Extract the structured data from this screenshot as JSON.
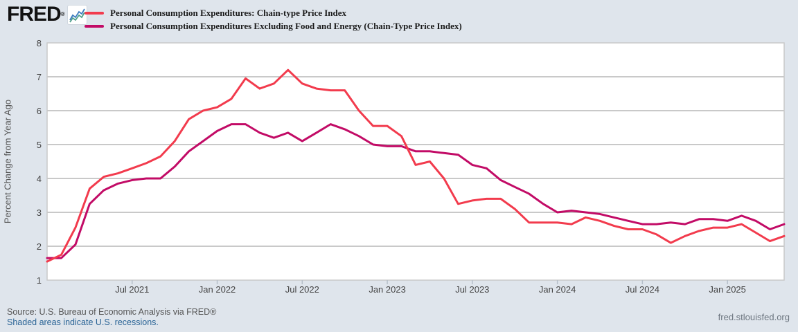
{
  "header": {
    "logo_text": "FRED",
    "logo_registered": "®",
    "logo_icon": "sparkline-chart-icon",
    "legend": [
      {
        "label": "Personal Consumption Expenditures: Chain-type Price Index",
        "color": "#f23b4d"
      },
      {
        "label": "Personal Consumption Expenditures Excluding Food and Energy (Chain-Type Price Index)",
        "color": "#c20b66"
      }
    ]
  },
  "footer": {
    "source": "Source: U.S. Bureau of Economic Analysis via FRED®",
    "recession_note": "Shaded areas indicate U.S. recessions.",
    "site": "fred.stlouisfed.org"
  },
  "chart_data": {
    "type": "line",
    "title": "",
    "xlabel": "",
    "ylabel": "Percent Change from Year Ago",
    "ylim": [
      1,
      8
    ],
    "yticks": [
      1,
      2,
      3,
      4,
      5,
      6,
      7,
      8
    ],
    "grid": true,
    "legend_position": "top-left-outside",
    "plot_bg": "#ffffff",
    "page_bg": "#dfe5ec",
    "grid_color": "#c9c9c9",
    "x": [
      "2021-01",
      "2021-02",
      "2021-03",
      "2021-04",
      "2021-05",
      "2021-06",
      "2021-07",
      "2021-08",
      "2021-09",
      "2021-10",
      "2021-11",
      "2021-12",
      "2022-01",
      "2022-02",
      "2022-03",
      "2022-04",
      "2022-05",
      "2022-06",
      "2022-07",
      "2022-08",
      "2022-09",
      "2022-10",
      "2022-11",
      "2022-12",
      "2023-01",
      "2023-02",
      "2023-03",
      "2023-04",
      "2023-05",
      "2023-06",
      "2023-07",
      "2023-08",
      "2023-09",
      "2023-10",
      "2023-11",
      "2023-12",
      "2024-01",
      "2024-02",
      "2024-03",
      "2024-04",
      "2024-05",
      "2024-06",
      "2024-07",
      "2024-08",
      "2024-09",
      "2024-10",
      "2024-11",
      "2024-12",
      "2025-01",
      "2025-02",
      "2025-03",
      "2025-04",
      "2025-05"
    ],
    "xticks": [
      {
        "label": "Jul 2021",
        "month": "2021-07"
      },
      {
        "label": "Jan 2022",
        "month": "2022-01"
      },
      {
        "label": "Jul 2022",
        "month": "2022-07"
      },
      {
        "label": "Jan 2023",
        "month": "2023-01"
      },
      {
        "label": "Jul 2023",
        "month": "2023-07"
      },
      {
        "label": "Jan 2024",
        "month": "2024-01"
      },
      {
        "label": "Jul 2024",
        "month": "2024-07"
      },
      {
        "label": "Jan 2025",
        "month": "2025-01"
      }
    ],
    "series": [
      {
        "name": "Personal Consumption Expenditures: Chain-type Price Index",
        "color": "#f23b4d",
        "values": [
          1.55,
          1.75,
          2.55,
          3.7,
          4.05,
          4.15,
          4.3,
          4.45,
          4.65,
          5.1,
          5.75,
          6.0,
          6.1,
          6.35,
          6.95,
          6.65,
          6.8,
          7.2,
          6.8,
          6.65,
          6.6,
          6.6,
          6.0,
          5.55,
          5.55,
          5.25,
          4.4,
          4.5,
          4.0,
          3.25,
          3.35,
          3.4,
          3.4,
          3.1,
          2.7,
          2.7,
          2.7,
          2.65,
          2.85,
          2.75,
          2.6,
          2.5,
          2.5,
          2.35,
          2.1,
          2.3,
          2.45,
          2.55,
          2.55,
          2.65,
          2.4,
          2.15,
          2.3
        ]
      },
      {
        "name": "Personal Consumption Expenditures Excluding Food and Energy (Chain-Type Price Index)",
        "color": "#c20b66",
        "values": [
          1.65,
          1.65,
          2.05,
          3.25,
          3.65,
          3.85,
          3.95,
          4.0,
          4.0,
          4.35,
          4.8,
          5.1,
          5.4,
          5.6,
          5.6,
          5.35,
          5.2,
          5.35,
          5.1,
          5.35,
          5.6,
          5.45,
          5.25,
          5.0,
          4.95,
          4.95,
          4.8,
          4.8,
          4.75,
          4.7,
          4.4,
          4.3,
          3.95,
          3.75,
          3.55,
          3.25,
          3.0,
          3.05,
          3.0,
          2.95,
          2.85,
          2.75,
          2.65,
          2.65,
          2.7,
          2.65,
          2.8,
          2.8,
          2.75,
          2.9,
          2.75,
          2.5,
          2.65
        ]
      }
    ]
  }
}
